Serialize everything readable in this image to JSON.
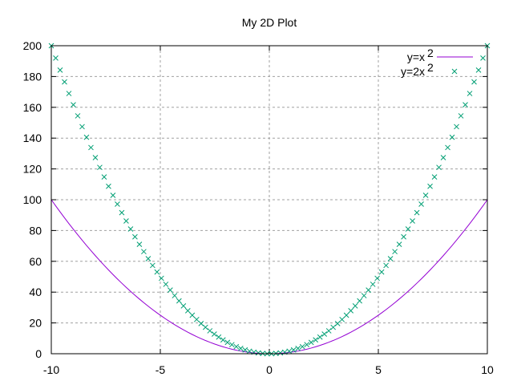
{
  "chart_data": {
    "type": "line",
    "title": "My 2D Plot",
    "xlabel": "",
    "ylabel": "",
    "xlim": [
      -10,
      10
    ],
    "ylim": [
      0,
      200
    ],
    "grid": true,
    "legend_position": "top-right",
    "x_ticks": [
      -10,
      -5,
      0,
      5,
      10
    ],
    "y_ticks": [
      0,
      20,
      40,
      60,
      80,
      100,
      120,
      140,
      160,
      180,
      200
    ],
    "samples": 100,
    "series": [
      {
        "name": "y=x^2",
        "label_base": "y=x",
        "label_sup": "2",
        "style": "line",
        "color": "#9400d3",
        "function": "x^2",
        "coef": 1
      },
      {
        "name": "y=2x^2",
        "label_base": "y=2x",
        "label_sup": "2",
        "style": "points-x",
        "color": "#009e73",
        "function": "2*x^2",
        "coef": 2
      }
    ]
  }
}
